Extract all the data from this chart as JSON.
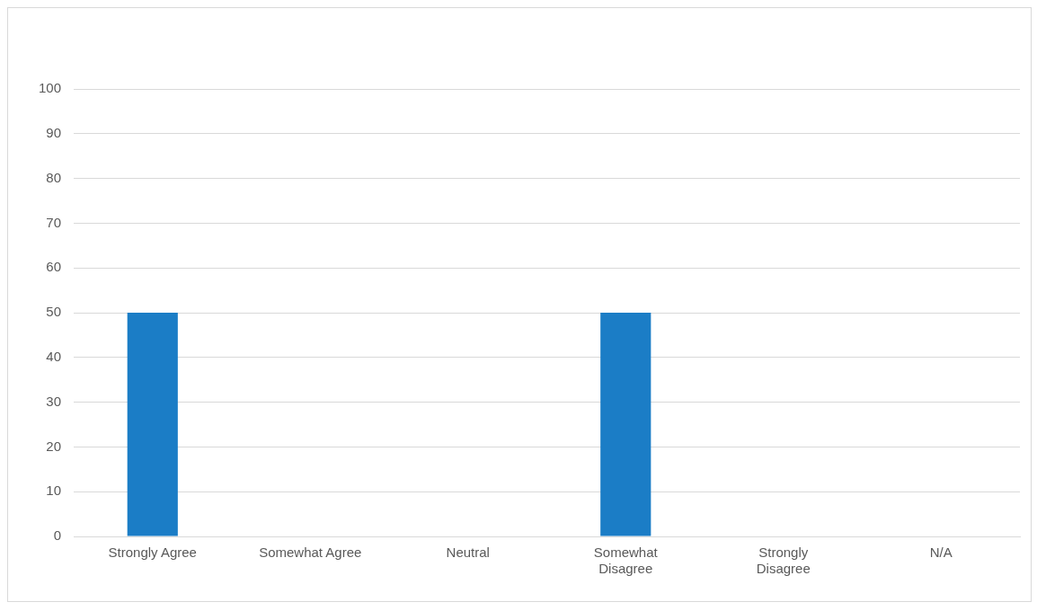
{
  "chart_data": {
    "type": "bar",
    "categories": [
      "Strongly Agree",
      "Somewhat Agree",
      "Neutral",
      "Somewhat Disagree",
      "Strongly Disagree",
      "N/A"
    ],
    "values": [
      50,
      0,
      0,
      50,
      0,
      0
    ],
    "color": "#1b7dc6",
    "ylim": [
      0,
      100
    ],
    "yticks": [
      0,
      10,
      20,
      30,
      40,
      50,
      60,
      70,
      80,
      90,
      100
    ],
    "grid": "y",
    "legend": false
  }
}
